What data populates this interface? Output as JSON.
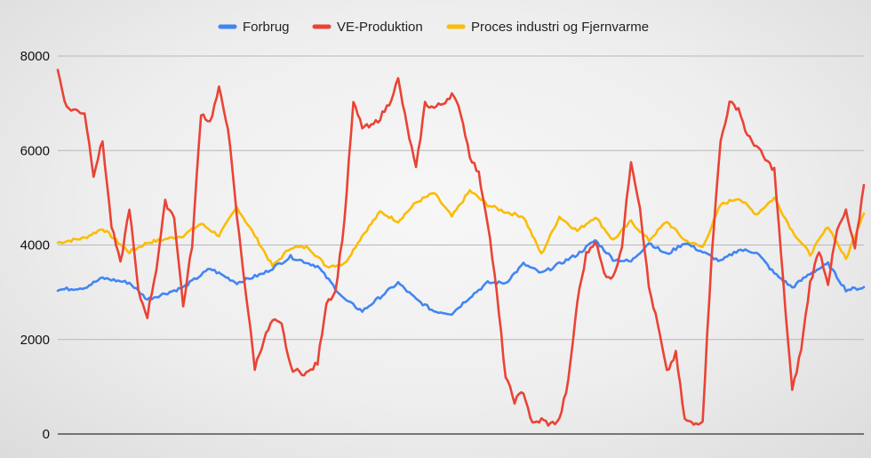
{
  "chart_data": {
    "type": "line",
    "title": "",
    "xlabel": "",
    "ylabel": "",
    "ylim": [
      0,
      8000
    ],
    "yticks": [
      0,
      2000,
      4000,
      6000,
      8000
    ],
    "grid": true,
    "legend_position": "top-center",
    "x_key_points": "x in data points 0..90 (uniform time index); series are piecewise-linear between key points",
    "series": [
      {
        "name": "Forbrug",
        "color": "#4285f4",
        "key_points": [
          [
            0,
            3050
          ],
          [
            3,
            3100
          ],
          [
            5,
            3300
          ],
          [
            8,
            3200
          ],
          [
            10,
            2850
          ],
          [
            14,
            3100
          ],
          [
            17,
            3500
          ],
          [
            20,
            3200
          ],
          [
            23,
            3400
          ],
          [
            26,
            3750
          ],
          [
            29,
            3550
          ],
          [
            32,
            2850
          ],
          [
            34,
            2600
          ],
          [
            36,
            2900
          ],
          [
            38,
            3200
          ],
          [
            40,
            2850
          ],
          [
            42,
            2600
          ],
          [
            44,
            2550
          ],
          [
            46,
            2900
          ],
          [
            48,
            3200
          ],
          [
            50,
            3200
          ],
          [
            52,
            3600
          ],
          [
            54,
            3400
          ],
          [
            56,
            3600
          ],
          [
            58,
            3800
          ],
          [
            60,
            4100
          ],
          [
            62,
            3700
          ],
          [
            64,
            3650
          ],
          [
            66,
            4050
          ],
          [
            68,
            3800
          ],
          [
            70,
            4050
          ],
          [
            72,
            3850
          ],
          [
            74,
            3650
          ],
          [
            76,
            3900
          ],
          [
            78,
            3850
          ],
          [
            80,
            3400
          ],
          [
            82,
            3100
          ],
          [
            84,
            3400
          ],
          [
            86,
            3600
          ],
          [
            88,
            3050
          ],
          [
            90,
            3100
          ]
        ],
        "scale": "approx"
      },
      {
        "name": "VE-Produktion",
        "color": "#ea4335",
        "key_points": [
          [
            0,
            7700
          ],
          [
            1,
            6900
          ],
          [
            3,
            6800
          ],
          [
            4,
            5500
          ],
          [
            5,
            6200
          ],
          [
            6,
            4400
          ],
          [
            7,
            3600
          ],
          [
            8,
            4800
          ],
          [
            9,
            3000
          ],
          [
            10,
            2500
          ],
          [
            11,
            3500
          ],
          [
            12,
            4900
          ],
          [
            13,
            4600
          ],
          [
            14,
            2700
          ],
          [
            15,
            4000
          ],
          [
            16,
            6800
          ],
          [
            17,
            6600
          ],
          [
            18,
            7300
          ],
          [
            19,
            6500
          ],
          [
            20,
            4600
          ],
          [
            21,
            3000
          ],
          [
            22,
            1400
          ],
          [
            23,
            2000
          ],
          [
            24,
            2400
          ],
          [
            25,
            2300
          ],
          [
            26,
            1400
          ],
          [
            27,
            1300
          ],
          [
            28,
            1300
          ],
          [
            29,
            1500
          ],
          [
            30,
            2800
          ],
          [
            31,
            3000
          ],
          [
            32,
            4500
          ],
          [
            33,
            7000
          ],
          [
            34,
            6500
          ],
          [
            35,
            6500
          ],
          [
            36,
            6700
          ],
          [
            37,
            7000
          ],
          [
            38,
            7500
          ],
          [
            39,
            6500
          ],
          [
            40,
            5600
          ],
          [
            41,
            7000
          ],
          [
            42,
            6900
          ],
          [
            43,
            7000
          ],
          [
            44,
            7200
          ],
          [
            45,
            6800
          ],
          [
            46,
            5900
          ],
          [
            47,
            5500
          ],
          [
            48,
            4500
          ],
          [
            49,
            3000
          ],
          [
            50,
            1200
          ],
          [
            51,
            700
          ],
          [
            52,
            900
          ],
          [
            53,
            200
          ],
          [
            54,
            300
          ],
          [
            55,
            200
          ],
          [
            56,
            300
          ],
          [
            57,
            1100
          ],
          [
            58,
            2800
          ],
          [
            59,
            3800
          ],
          [
            60,
            4100
          ],
          [
            61,
            3400
          ],
          [
            62,
            3300
          ],
          [
            63,
            4000
          ],
          [
            64,
            5800
          ],
          [
            65,
            4800
          ],
          [
            66,
            3100
          ],
          [
            67,
            2300
          ],
          [
            68,
            1300
          ],
          [
            69,
            1700
          ],
          [
            70,
            300
          ],
          [
            71,
            200
          ],
          [
            72,
            300
          ],
          [
            73,
            3800
          ],
          [
            74,
            6200
          ],
          [
            75,
            7000
          ],
          [
            76,
            6900
          ],
          [
            77,
            6300
          ],
          [
            78,
            6100
          ],
          [
            79,
            5800
          ],
          [
            80,
            5600
          ],
          [
            81,
            3200
          ],
          [
            82,
            900
          ],
          [
            83,
            1800
          ],
          [
            84,
            3200
          ],
          [
            85,
            3900
          ],
          [
            86,
            3200
          ],
          [
            87,
            4300
          ],
          [
            88,
            4700
          ],
          [
            89,
            3900
          ],
          [
            90,
            5300
          ]
        ],
        "scale": "approx"
      },
      {
        "name": "Proces industri og Fjernvarme",
        "color": "#fbbc04",
        "key_points": [
          [
            0,
            4050
          ],
          [
            3,
            4150
          ],
          [
            5,
            4350
          ],
          [
            8,
            3850
          ],
          [
            10,
            4050
          ],
          [
            14,
            4200
          ],
          [
            16,
            4450
          ],
          [
            18,
            4200
          ],
          [
            20,
            4800
          ],
          [
            22,
            4200
          ],
          [
            24,
            3550
          ],
          [
            26,
            3950
          ],
          [
            28,
            3950
          ],
          [
            30,
            3550
          ],
          [
            32,
            3600
          ],
          [
            34,
            4200
          ],
          [
            36,
            4700
          ],
          [
            38,
            4500
          ],
          [
            40,
            4900
          ],
          [
            42,
            5100
          ],
          [
            44,
            4600
          ],
          [
            46,
            5150
          ],
          [
            48,
            4850
          ],
          [
            50,
            4700
          ],
          [
            52,
            4600
          ],
          [
            54,
            3800
          ],
          [
            56,
            4600
          ],
          [
            58,
            4300
          ],
          [
            60,
            4600
          ],
          [
            62,
            4100
          ],
          [
            64,
            4500
          ],
          [
            66,
            4100
          ],
          [
            68,
            4500
          ],
          [
            70,
            4100
          ],
          [
            72,
            3950
          ],
          [
            74,
            4850
          ],
          [
            76,
            5000
          ],
          [
            78,
            4650
          ],
          [
            80,
            5000
          ],
          [
            82,
            4300
          ],
          [
            84,
            3800
          ],
          [
            86,
            4400
          ],
          [
            88,
            3700
          ],
          [
            90,
            4700
          ]
        ],
        "scale": "approx"
      }
    ]
  }
}
